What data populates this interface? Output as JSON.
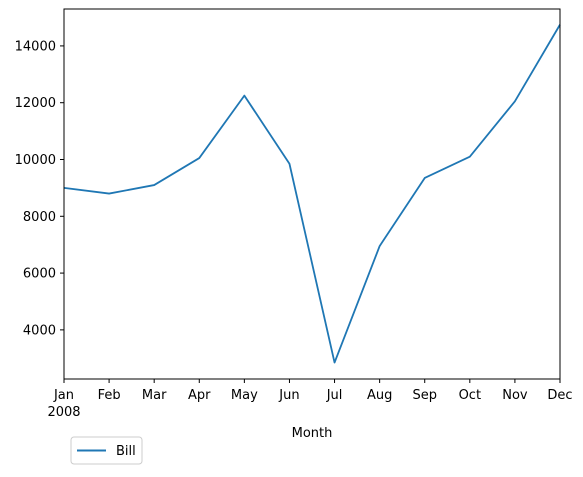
{
  "chart_data": {
    "type": "line",
    "title": "",
    "xlabel": "Month",
    "ylabel": "",
    "categories": [
      "2008-01",
      "2008-02",
      "2008-03",
      "2008-04",
      "2008-05",
      "2008-06",
      "2008-07",
      "2008-08",
      "2008-09",
      "2008-10",
      "2008-11",
      "2008-12"
    ],
    "x_tick_labels": [
      "Jan",
      "Feb",
      "Mar",
      "Apr",
      "May",
      "Jun",
      "Jul",
      "Aug",
      "Sep",
      "Oct",
      "Nov",
      "Dec"
    ],
    "x_tick_sublabel": "2008",
    "y_ticks": [
      4000,
      6000,
      8000,
      10000,
      12000,
      14000
    ],
    "ylim": [
      2270,
      15300
    ],
    "grid": false,
    "legend_position": "below-left",
    "series": [
      {
        "name": "Bill",
        "color": "#1f77b4",
        "values": [
          9000,
          8800,
          9100,
          10050,
          12250,
          9850,
          2850,
          6950,
          9350,
          10100,
          12050,
          14750
        ]
      }
    ]
  }
}
